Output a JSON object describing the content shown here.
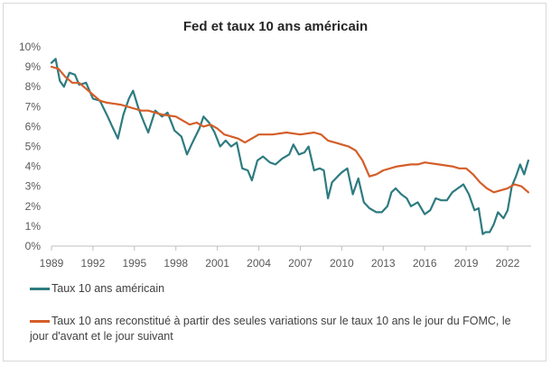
{
  "chart_data": {
    "type": "line",
    "title": "Fed et taux 10 ans américain",
    "xlabel": "",
    "ylabel": "",
    "xlim": [
      1989,
      2023.7
    ],
    "ylim": [
      0,
      10
    ],
    "x_ticks": [
      1989,
      1992,
      1995,
      1998,
      2001,
      2004,
      2007,
      2010,
      2013,
      2016,
      2019,
      2022
    ],
    "x_tick_labels": [
      "1989",
      "1992",
      "1995",
      "1998",
      "2001",
      "2004",
      "2007",
      "2010",
      "2013",
      "2016",
      "2019",
      "2022"
    ],
    "y_ticks": [
      0,
      1,
      2,
      3,
      4,
      5,
      6,
      7,
      8,
      9,
      10
    ],
    "y_tick_labels": [
      "0%",
      "1%",
      "2%",
      "3%",
      "4%",
      "5%",
      "6%",
      "7%",
      "8%",
      "9%",
      "10%"
    ],
    "grid": false,
    "legend_position": "bottom",
    "series": [
      {
        "name": "Taux 10 ans américain",
        "color": "#2e7b80",
        "x": [
          1989.0,
          1989.3,
          1989.6,
          1989.9,
          1990.3,
          1990.7,
          1991.0,
          1991.5,
          1992.0,
          1992.5,
          1993.0,
          1993.4,
          1993.8,
          1994.2,
          1994.6,
          1994.9,
          1995.3,
          1995.7,
          1996.0,
          1996.5,
          1997.0,
          1997.4,
          1997.9,
          1998.4,
          1998.8,
          1999.2,
          1999.7,
          2000.0,
          2000.4,
          2000.8,
          2001.2,
          2001.6,
          2002.0,
          2002.4,
          2002.8,
          2003.2,
          2003.5,
          2003.9,
          2004.3,
          2004.8,
          2005.2,
          2005.7,
          2006.2,
          2006.5,
          2006.9,
          2007.3,
          2007.6,
          2008.0,
          2008.4,
          2008.7,
          2009.0,
          2009.3,
          2009.7,
          2010.0,
          2010.4,
          2010.8,
          2011.2,
          2011.6,
          2012.0,
          2012.5,
          2012.9,
          2013.3,
          2013.6,
          2013.9,
          2014.3,
          2014.7,
          2015.0,
          2015.5,
          2016.0,
          2016.4,
          2016.8,
          2017.2,
          2017.6,
          2018.0,
          2018.4,
          2018.8,
          2019.2,
          2019.6,
          2019.9,
          2020.2,
          2020.4,
          2020.7,
          2021.0,
          2021.3,
          2021.7,
          2022.0,
          2022.3,
          2022.6,
          2022.9,
          2023.2,
          2023.5
        ],
        "values": [
          9.2,
          9.4,
          8.3,
          8.0,
          8.7,
          8.6,
          8.1,
          8.2,
          7.4,
          7.3,
          6.6,
          6.0,
          5.4,
          6.6,
          7.4,
          7.8,
          6.9,
          6.2,
          5.7,
          6.8,
          6.5,
          6.7,
          5.8,
          5.5,
          4.6,
          5.2,
          5.9,
          6.5,
          6.2,
          5.7,
          5.0,
          5.3,
          5.0,
          5.2,
          3.9,
          3.8,
          3.3,
          4.3,
          4.5,
          4.2,
          4.1,
          4.4,
          4.6,
          5.1,
          4.6,
          4.7,
          5.0,
          3.8,
          3.9,
          3.8,
          2.4,
          3.2,
          3.5,
          3.7,
          3.9,
          2.6,
          3.4,
          2.2,
          1.9,
          1.7,
          1.7,
          2.0,
          2.7,
          2.9,
          2.6,
          2.4,
          2.0,
          2.2,
          1.6,
          1.8,
          2.4,
          2.3,
          2.3,
          2.7,
          2.9,
          3.1,
          2.6,
          1.8,
          1.9,
          0.6,
          0.7,
          0.7,
          1.1,
          1.7,
          1.4,
          1.8,
          3.0,
          3.5,
          4.1,
          3.6,
          4.3
        ]
      },
      {
        "name": "Taux 10 ans reconstitué à partir des seules variations sur le taux 10 ans le jour du FOMC, le jour d'avant et le jour suivant",
        "color": "#d45e28",
        "x": [
          1989.0,
          1989.5,
          1990.0,
          1990.5,
          1991.0,
          1991.5,
          1992.0,
          1992.5,
          1993.0,
          1994.0,
          1995.0,
          1995.5,
          1996.0,
          1997.0,
          1998.0,
          1998.5,
          1999.0,
          1999.5,
          2000.0,
          2000.5,
          2001.0,
          2001.5,
          2002.0,
          2002.5,
          2003.0,
          2004.0,
          2004.5,
          2005.0,
          2006.0,
          2007.0,
          2008.0,
          2008.5,
          2009.0,
          2009.5,
          2010.0,
          2010.5,
          2011.0,
          2011.5,
          2012.0,
          2012.5,
          2013.0,
          2014.0,
          2015.0,
          2015.5,
          2016.0,
          2017.0,
          2018.0,
          2018.5,
          2019.0,
          2019.5,
          2020.0,
          2020.5,
          2021.0,
          2022.0,
          2022.5,
          2023.0,
          2023.5
        ],
        "values": [
          9.0,
          8.9,
          8.5,
          8.2,
          8.2,
          7.9,
          7.6,
          7.3,
          7.2,
          7.1,
          6.9,
          6.8,
          6.8,
          6.6,
          6.5,
          6.3,
          6.1,
          6.2,
          6.0,
          6.1,
          5.9,
          5.6,
          5.5,
          5.4,
          5.2,
          5.6,
          5.6,
          5.6,
          5.7,
          5.6,
          5.7,
          5.6,
          5.3,
          5.2,
          5.1,
          5.0,
          4.8,
          4.3,
          3.5,
          3.6,
          3.8,
          4.0,
          4.1,
          4.1,
          4.2,
          4.1,
          4.0,
          3.9,
          3.9,
          3.6,
          3.2,
          2.9,
          2.7,
          2.9,
          3.1,
          3.0,
          2.7
        ]
      }
    ]
  }
}
